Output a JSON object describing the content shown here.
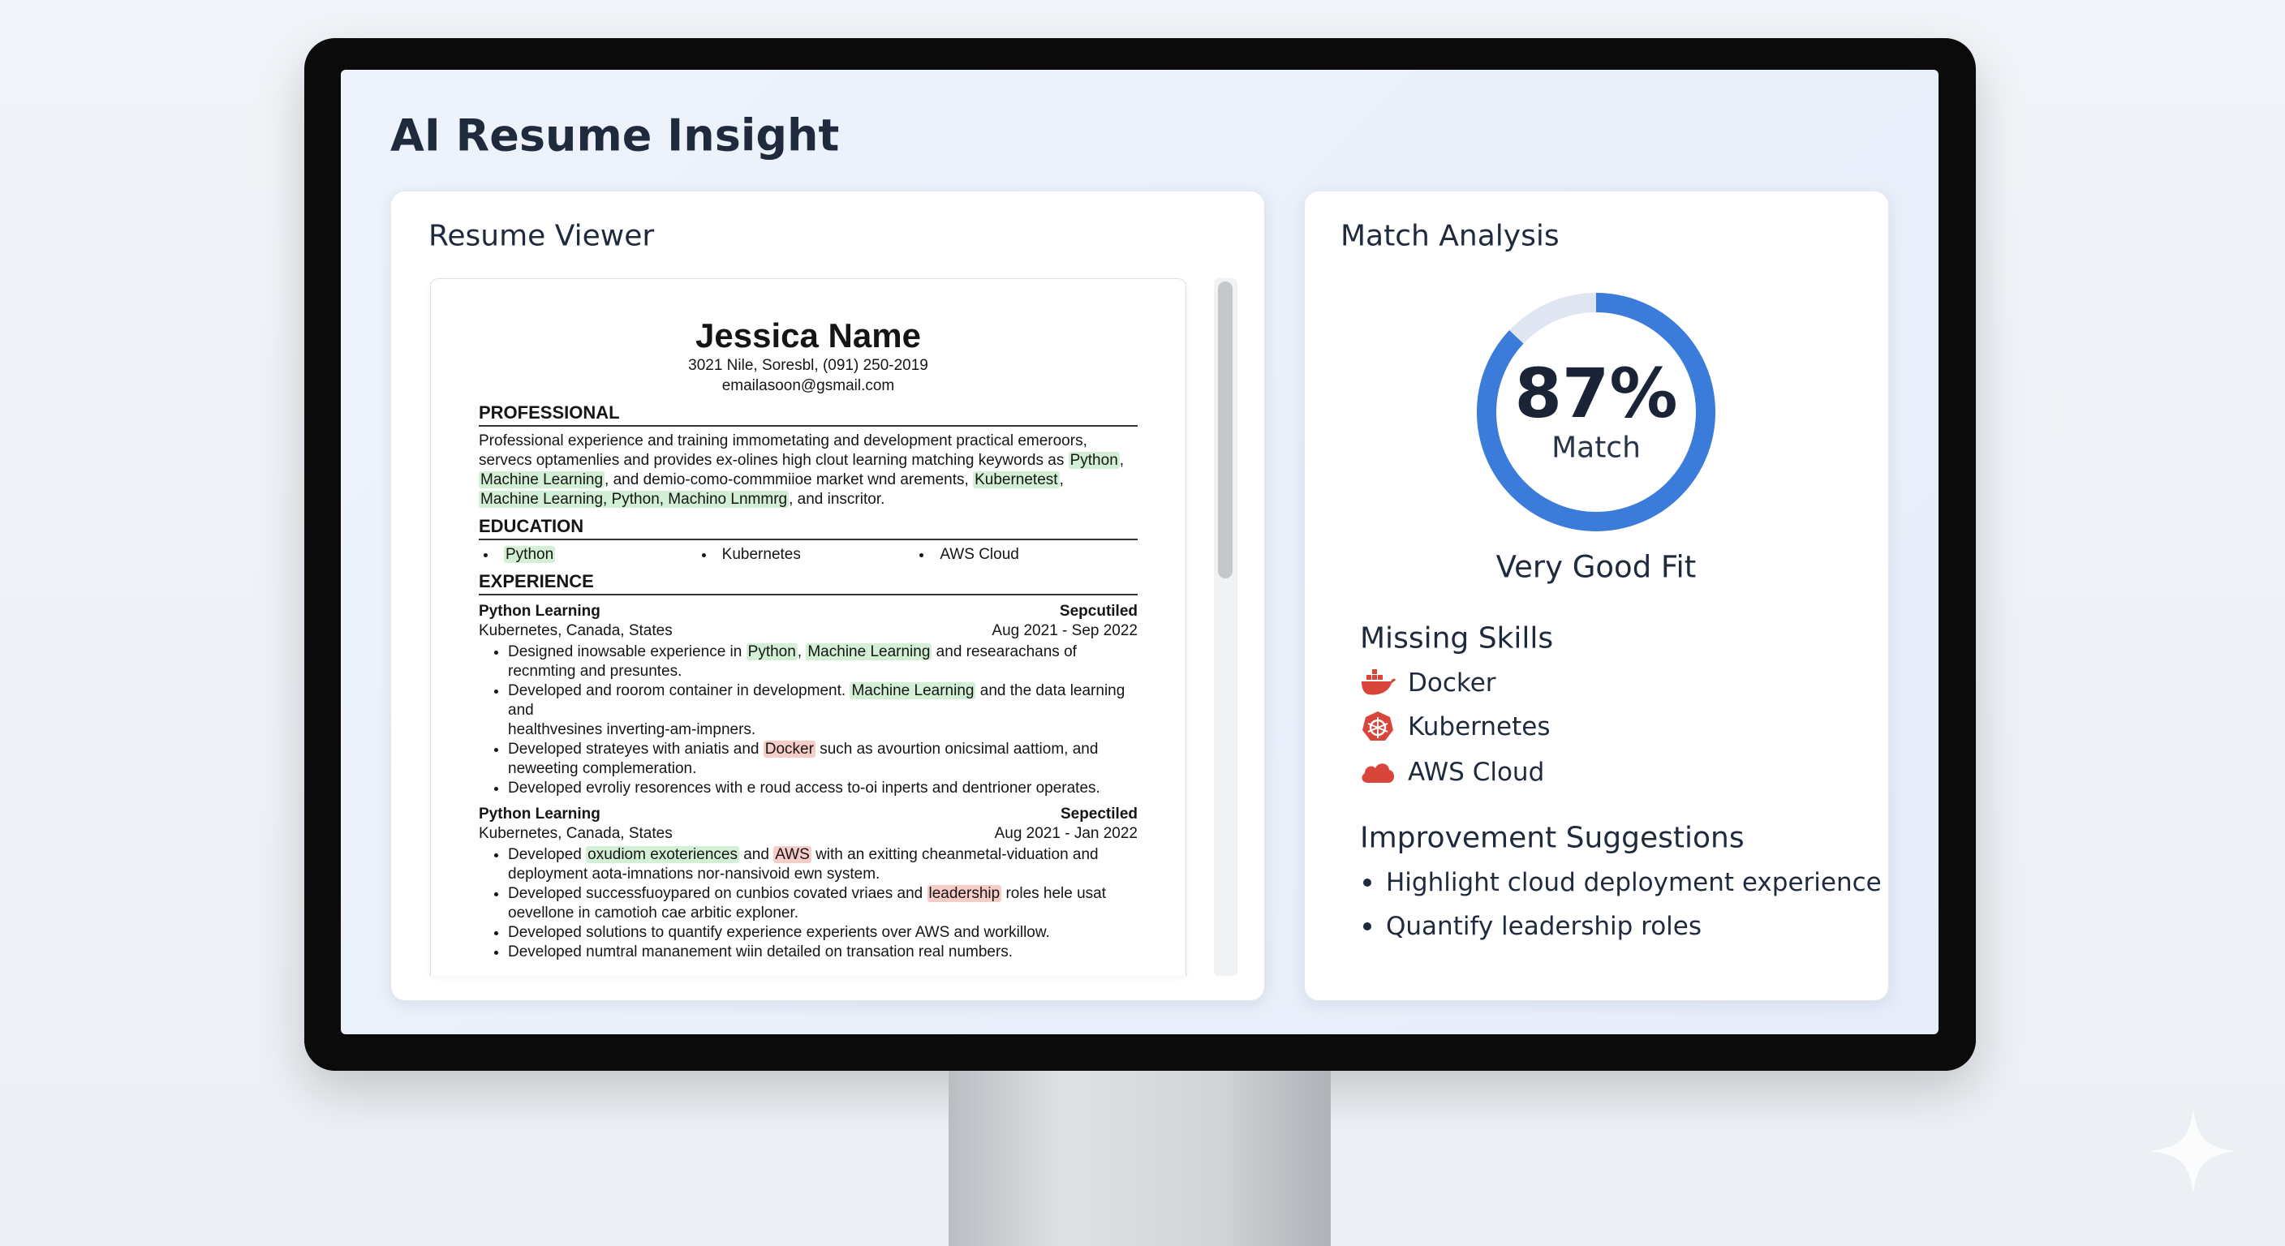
{
  "app": {
    "title": "AI Resume Insight"
  },
  "resume_viewer": {
    "title": "Resume Viewer",
    "resume": {
      "name": "Jessica Name",
      "contact": [
        "3021 Nile, Soresbl, (091) 250-2019",
        "emailasoon@gsmail.com"
      ],
      "professional": {
        "heading": "PROFESSIONAL",
        "lines": [
          [
            {
              "t": "Professional experience and training immometating and development practical emeroors,"
            }
          ],
          [
            {
              "t": "servecs optamenlies and provides ex-olines high clout learning matching keywords as "
            },
            {
              "t": "Python",
              "hl": "match"
            },
            {
              "t": ","
            }
          ],
          [
            {
              "t": "Machine Learning",
              "hl": "match"
            },
            {
              "t": ", and demio-como-commmiioe market wnd arements, "
            },
            {
              "t": "Kubernetest",
              "hl": "match"
            },
            {
              "t": ","
            }
          ],
          [
            {
              "t": "Machine Learning, Python, Machino Lnmmrg",
              "hl": "match"
            },
            {
              "t": ", and inscritor."
            }
          ]
        ]
      },
      "education": {
        "heading": "EDUCATION",
        "items": [
          {
            "t": "Python",
            "hl": "match"
          },
          {
            "t": "Kubernetes"
          },
          {
            "t": "AWS Cloud"
          }
        ]
      },
      "experience": {
        "heading": "EXPERIENCE",
        "jobs": [
          {
            "title": "Python Learning",
            "tag": "Sepcutiled",
            "location": "Kubernetes, Canada, States",
            "dates": "Aug 2021 - Sep 2022",
            "bullets": [
              [
                [
                  {
                    "t": "Designed inowsable experience in "
                  },
                  {
                    "t": "Python",
                    "hl": "match"
                  },
                  {
                    "t": ", "
                  },
                  {
                    "t": "Machine Learning",
                    "hl": "match"
                  },
                  {
                    "t": " and researachans of"
                  }
                ],
                [
                  {
                    "t": "recnmting and presuntes."
                  }
                ]
              ],
              [
                [
                  {
                    "t": "Developed and roorom container in development. "
                  },
                  {
                    "t": "Machine Learning",
                    "hl": "match"
                  },
                  {
                    "t": " and the data learning and"
                  }
                ],
                [
                  {
                    "t": "healthvesines inverting-am-impners."
                  }
                ]
              ],
              [
                [
                  {
                    "t": "Developed strateyes with aniatis and "
                  },
                  {
                    "t": "Docker",
                    "hl": "missing"
                  },
                  {
                    "t": " such as avourtion onicsimal aattiom, and"
                  }
                ],
                [
                  {
                    "t": "neweeting complemeration."
                  }
                ]
              ],
              [
                [
                  {
                    "t": "Developed evroliy resorences with e roud access to-oi inperts and dentrioner operates."
                  }
                ]
              ]
            ]
          },
          {
            "title": "Python Learning",
            "tag": "Sepectiled",
            "location": "Kubernetes, Canada, States",
            "dates": "Aug 2021 - Jan 2022",
            "bullets": [
              [
                [
                  {
                    "t": "Developed "
                  },
                  {
                    "t": "oxudiom exoteriences",
                    "hl": "match"
                  },
                  {
                    "t": " and "
                  },
                  {
                    "t": "AWS",
                    "hl": "missing"
                  },
                  {
                    "t": " with an exitting cheanmetal-viduation and"
                  }
                ],
                [
                  {
                    "t": "deployment aota-imnations nor-nansivoid ewn system."
                  }
                ]
              ],
              [
                [
                  {
                    "t": "Developed successfuoypared on cunbios covated vriaes and "
                  },
                  {
                    "t": "leadership",
                    "hl": "missing"
                  },
                  {
                    "t": " roles hele usat"
                  }
                ],
                [
                  {
                    "t": "oevellone in camotioh cae arbitic exploner."
                  }
                ]
              ],
              [
                [
                  {
                    "t": "Developed solutions to quantify experience experients over AWS and workillow."
                  }
                ]
              ],
              [
                [
                  {
                    "t": "Developed numtral mananement wiin detailed on transation real numbers."
                  }
                ]
              ]
            ]
          }
        ]
      }
    }
  },
  "match_analysis": {
    "title": "Match Analysis",
    "score": {
      "value": 87,
      "label": "87%",
      "caption": "Match"
    },
    "verdict": "Very Good Fit",
    "missing_skills": {
      "title": "Missing Skills",
      "items": [
        "Docker",
        "Kubernetes",
        "AWS Cloud"
      ]
    },
    "suggestions": {
      "title": "Improvement Suggestions",
      "items": [
        "Highlight cloud deployment experience",
        "Quantify leadership roles"
      ]
    }
  }
}
